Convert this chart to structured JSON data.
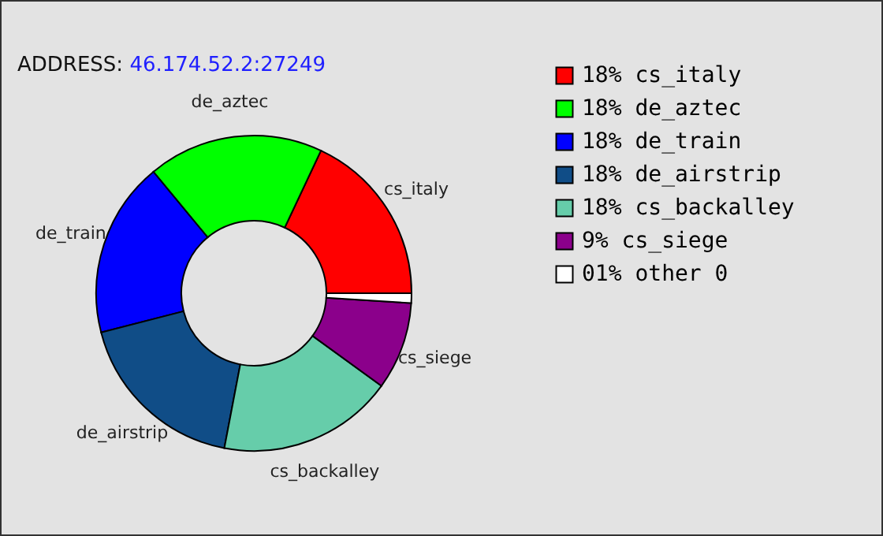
{
  "chart_data": {
    "type": "donut",
    "subtitle": "ADDRESS: 46.174.52.2:27249",
    "categories": [
      "cs_italy",
      "de_aztec",
      "de_train",
      "de_airstrip",
      "cs_backalley",
      "cs_siege",
      "other 0"
    ],
    "values": [
      18,
      18,
      18,
      18,
      18,
      9,
      1
    ],
    "value_labels": [
      "18%",
      "18%",
      "18%",
      "18%",
      "18%",
      "9%",
      "01%"
    ],
    "colors": [
      "#ff0000",
      "#00ff00",
      "#0000ff",
      "#104d87",
      "#66cdaa",
      "#8b008b",
      "#ffffff"
    ],
    "legend": "top right"
  }
}
